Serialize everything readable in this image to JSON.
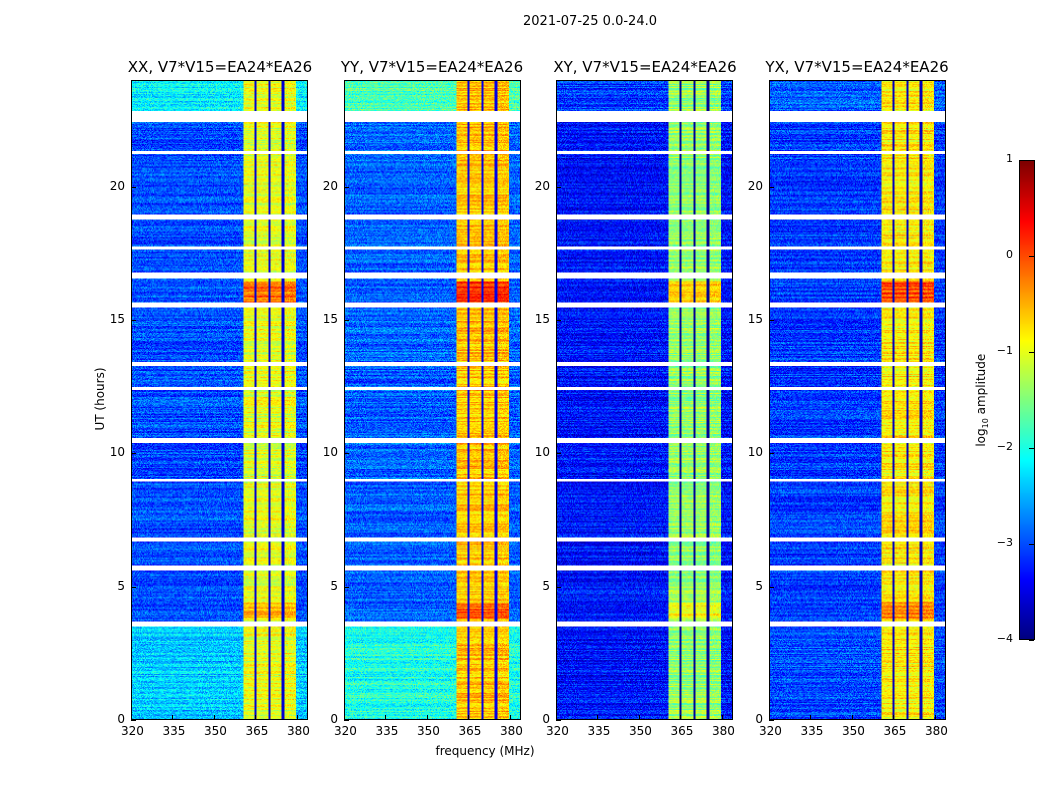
{
  "chart_data": {
    "type": "heatmap",
    "title": "2021-07-25 0.0-24.0",
    "xlabel": "frequency (MHz)",
    "ylabel": "UT (hours)",
    "xlim": [
      320,
      384
    ],
    "ylim": [
      0,
      24
    ],
    "xticks": [
      "320",
      "335",
      "350",
      "365",
      "380"
    ],
    "xtick_values": [
      320,
      335,
      350,
      365,
      380
    ],
    "yticks": [
      "0",
      "5",
      "10",
      "15",
      "20"
    ],
    "ytick_values": [
      0,
      5,
      10,
      15,
      20
    ],
    "colormap": "jet",
    "colorbar": {
      "label_prefix": "log",
      "label_sub": "10",
      "label_suffix": " amplitude",
      "range": [
        -4,
        1
      ],
      "ticks": [
        "1",
        "0",
        "−1",
        "−2",
        "−3",
        "−4"
      ],
      "tick_values": [
        1,
        0,
        -1,
        -2,
        -3,
        -4
      ]
    },
    "bright_band_mhz": [
      360.5,
      380
    ],
    "band_gaps_mhz": [
      365,
      370,
      375
    ],
    "flagged_hours": [
      [
        22.5,
        22.9
      ],
      [
        21.3,
        21.4
      ],
      [
        18.8,
        19.0
      ],
      [
        17.7,
        17.8
      ],
      [
        16.6,
        16.8
      ],
      [
        15.5,
        15.7
      ],
      [
        13.3,
        13.45
      ],
      [
        12.4,
        12.5
      ],
      [
        10.4,
        10.6
      ],
      [
        8.95,
        9.05
      ],
      [
        6.7,
        6.85
      ],
      [
        5.6,
        5.8
      ],
      [
        3.5,
        3.7
      ]
    ],
    "panels": [
      {
        "title": "XX, V7*V15=EA24*EA26",
        "background_log_amp": -3.0,
        "band_log_amp": -1.0,
        "top_log_amp": -2.2,
        "low_hours_log_amp": -2.4
      },
      {
        "title": "YY, V7*V15=EA24*EA26",
        "background_log_amp": -2.9,
        "band_log_amp": -0.6,
        "top_log_amp": -1.8,
        "low_hours_log_amp": -2.0
      },
      {
        "title": "XY, V7*V15=EA24*EA26",
        "background_log_amp": -3.3,
        "band_log_amp": -1.4,
        "top_log_amp": -3.1,
        "low_hours_log_amp": -3.3
      },
      {
        "title": "YX, V7*V15=EA24*EA26",
        "background_log_amp": -3.1,
        "band_log_amp": -0.8,
        "top_log_amp": -2.9,
        "low_hours_log_amp": -3.0
      }
    ]
  }
}
